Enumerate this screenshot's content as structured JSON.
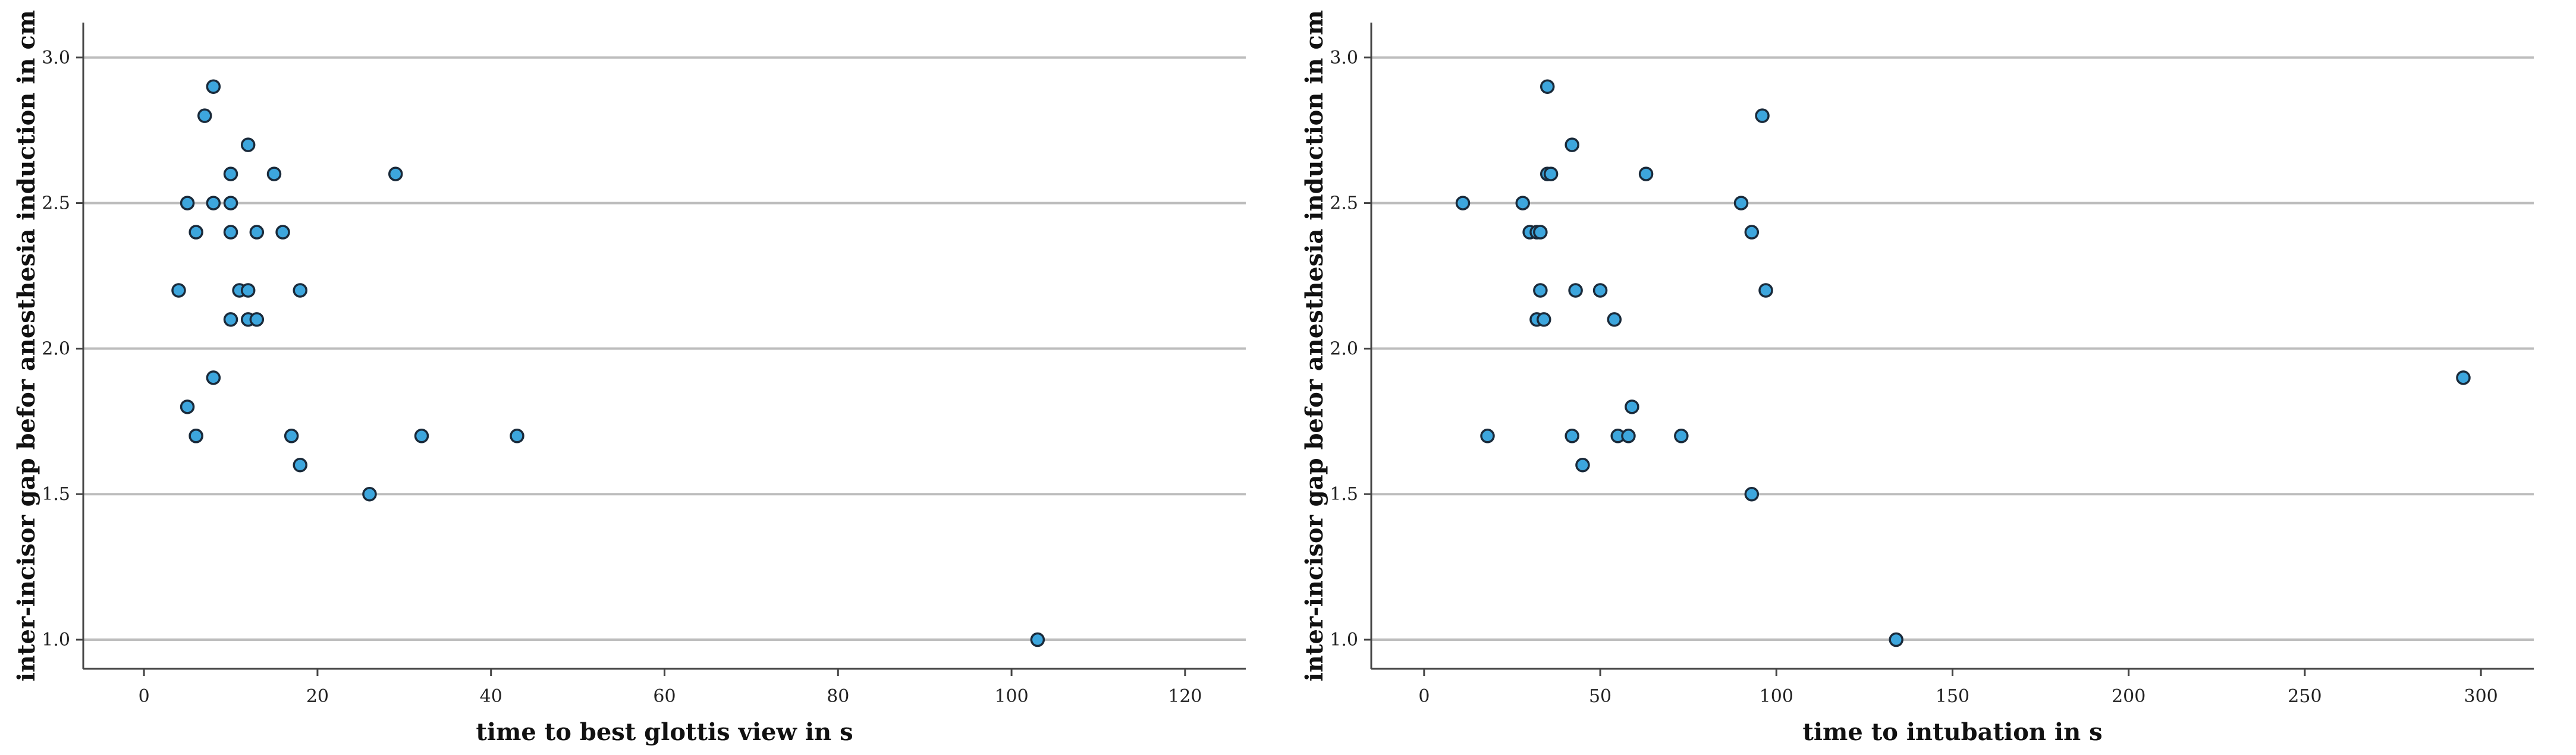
{
  "chart_data": [
    {
      "type": "scatter",
      "xlabel": "time to best glottis view in s",
      "ylabel": "inter-incisor gap befor anesthesia induction in cm",
      "xlim": [
        -7,
        127
      ],
      "ylim": [
        0.9,
        3.12
      ],
      "xticks": [
        0,
        20,
        40,
        60,
        80,
        100,
        120
      ],
      "yticks": [
        1.0,
        1.5,
        2.0,
        2.5,
        3.0
      ],
      "grid": "horizontal",
      "marker_color": "#3da6dd",
      "points": [
        {
          "x": 8,
          "y": 2.9
        },
        {
          "x": 7,
          "y": 2.8
        },
        {
          "x": 12,
          "y": 2.7
        },
        {
          "x": 10,
          "y": 2.6
        },
        {
          "x": 15,
          "y": 2.6
        },
        {
          "x": 29,
          "y": 2.6
        },
        {
          "x": 5,
          "y": 2.5
        },
        {
          "x": 8,
          "y": 2.5
        },
        {
          "x": 10,
          "y": 2.5
        },
        {
          "x": 6,
          "y": 2.4
        },
        {
          "x": 10,
          "y": 2.4
        },
        {
          "x": 13,
          "y": 2.4
        },
        {
          "x": 16,
          "y": 2.4
        },
        {
          "x": 4,
          "y": 2.2
        },
        {
          "x": 11,
          "y": 2.2
        },
        {
          "x": 12,
          "y": 2.2
        },
        {
          "x": 18,
          "y": 2.2
        },
        {
          "x": 10,
          "y": 2.1
        },
        {
          "x": 12,
          "y": 2.1
        },
        {
          "x": 13,
          "y": 2.1
        },
        {
          "x": 8,
          "y": 1.9
        },
        {
          "x": 5,
          "y": 1.8
        },
        {
          "x": 6,
          "y": 1.7
        },
        {
          "x": 6,
          "y": 1.7
        },
        {
          "x": 17,
          "y": 1.7
        },
        {
          "x": 32,
          "y": 1.7
        },
        {
          "x": 43,
          "y": 1.7
        },
        {
          "x": 18,
          "y": 1.6
        },
        {
          "x": 26,
          "y": 1.5
        },
        {
          "x": 103,
          "y": 1.0
        }
      ]
    },
    {
      "type": "scatter",
      "xlabel": "time to intubation in s",
      "ylabel": "inter-incisor gap befor anesthesia induction in cm",
      "xlim": [
        -15,
        315
      ],
      "ylim": [
        0.9,
        3.12
      ],
      "xticks": [
        0,
        50,
        100,
        150,
        200,
        250,
        300
      ],
      "yticks": [
        1.0,
        1.5,
        2.0,
        2.5,
        3.0
      ],
      "grid": "horizontal",
      "marker_color": "#3da6dd",
      "points": [
        {
          "x": 35,
          "y": 2.9
        },
        {
          "x": 96,
          "y": 2.8
        },
        {
          "x": 42,
          "y": 2.7
        },
        {
          "x": 35,
          "y": 2.6
        },
        {
          "x": 36,
          "y": 2.6
        },
        {
          "x": 63,
          "y": 2.6
        },
        {
          "x": 11,
          "y": 2.5
        },
        {
          "x": 28,
          "y": 2.5
        },
        {
          "x": 90,
          "y": 2.5
        },
        {
          "x": 30,
          "y": 2.4
        },
        {
          "x": 32,
          "y": 2.4
        },
        {
          "x": 33,
          "y": 2.4
        },
        {
          "x": 93,
          "y": 2.4
        },
        {
          "x": 33,
          "y": 2.2
        },
        {
          "x": 43,
          "y": 2.2
        },
        {
          "x": 50,
          "y": 2.2
        },
        {
          "x": 97,
          "y": 2.2
        },
        {
          "x": 32,
          "y": 2.1
        },
        {
          "x": 34,
          "y": 2.1
        },
        {
          "x": 54,
          "y": 2.1
        },
        {
          "x": 295,
          "y": 1.9
        },
        {
          "x": 59,
          "y": 1.8
        },
        {
          "x": 18,
          "y": 1.7
        },
        {
          "x": 42,
          "y": 1.7
        },
        {
          "x": 55,
          "y": 1.7
        },
        {
          "x": 58,
          "y": 1.7
        },
        {
          "x": 73,
          "y": 1.7
        },
        {
          "x": 45,
          "y": 1.6
        },
        {
          "x": 93,
          "y": 1.5
        },
        {
          "x": 134,
          "y": 1.0
        }
      ]
    }
  ]
}
